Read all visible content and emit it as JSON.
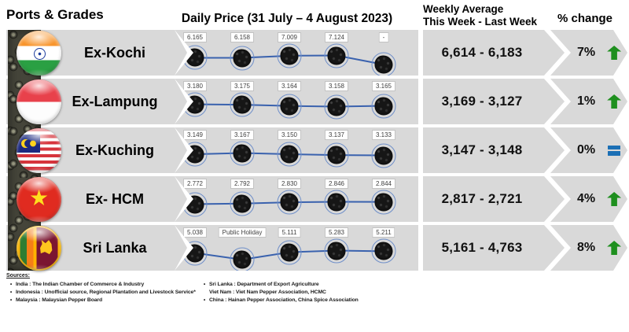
{
  "header": {
    "ports_grades": "Ports & Grades",
    "daily_price_title": "Daily Price (31 July – 4 August 2023)",
    "weekly_average_line1": "Weekly Average",
    "weekly_average_line2": "This Week - Last Week",
    "pct_change": "% change"
  },
  "chart_data": {
    "type": "line",
    "title": "Daily Price (31 July – 4 August 2023)",
    "points_per_series": 5,
    "legend_position": "none",
    "grid": false,
    "series": [
      {
        "port": "Ex-Kochi",
        "flag": "india",
        "labels": [
          "6.165",
          "6.158",
          "7.009",
          "7.124",
          "-"
        ],
        "values": [
          6165,
          6158,
          7009,
          7124,
          null
        ],
        "weekly_average_display": "6,614 - 6,183",
        "this_week": 6614,
        "last_week": 6183,
        "pct_change": "7%",
        "trend": "up"
      },
      {
        "port": "Ex-Lampung",
        "flag": "indonesia",
        "labels": [
          "3.180",
          "3.175",
          "3.164",
          "3.158",
          "3.165"
        ],
        "values": [
          3180,
          3175,
          3164,
          3158,
          3165
        ],
        "weekly_average_display": "3,169 - 3,127",
        "this_week": 3169,
        "last_week": 3127,
        "pct_change": "1%",
        "trend": "up"
      },
      {
        "port": "Ex-Kuching",
        "flag": "malaysia",
        "labels": [
          "3.149",
          "3.167",
          "3.150",
          "3.137",
          "3.133"
        ],
        "values": [
          3149,
          3167,
          3150,
          3137,
          3133
        ],
        "weekly_average_display": "3,147 - 3,148",
        "this_week": 3147,
        "last_week": 3148,
        "pct_change": "0%",
        "trend": "equal"
      },
      {
        "port": "Ex- HCM",
        "flag": "vietnam",
        "labels": [
          "2.772",
          "2.792",
          "2.830",
          "2.846",
          "2.844"
        ],
        "values": [
          2772,
          2792,
          2830,
          2846,
          2844
        ],
        "weekly_average_display": "2,817 - 2,721",
        "this_week": 2817,
        "last_week": 2721,
        "pct_change": "4%",
        "trend": "up"
      },
      {
        "port": "Sri Lanka",
        "flag": "sri-lanka",
        "labels": [
          "5.038",
          "Public Holiday",
          "5.111",
          "5.283",
          "5.211"
        ],
        "values": [
          5038,
          null,
          5111,
          5283,
          5211
        ],
        "weekly_average_display": "5,161 - 4,763",
        "this_week": 5161,
        "last_week": 4763,
        "pct_change": "8%",
        "trend": "up"
      }
    ]
  },
  "sources": {
    "heading": "Sources:",
    "left": [
      {
        "bullet": "•",
        "text": "India : The Indian Chamber of Commerce & Industry"
      },
      {
        "bullet": "•",
        "text": "Indonesia : Unofficial source, Regional Plantation and Livestock Service*"
      },
      {
        "bullet": "•",
        "text": "Malaysia : Malaysian Pepper Board"
      }
    ],
    "right": [
      {
        "bullet": "•",
        "text": "Sri Lanka : Department of Export Agriculture"
      },
      {
        "bullet": "",
        "text": "Viet Nam : Viet Nam Pepper Association, HCMC"
      },
      {
        "bullet": "•",
        "text": "China : Hainan Pepper Association, China Spice Association"
      }
    ]
  },
  "colors": {
    "band_gray": "#d9d9d9",
    "line_blue": "#3a62ae",
    "marker_ring_blue": "#6f8fc9",
    "up_green": "#1e8f1e",
    "equal_blue": "#1b6fb5"
  }
}
